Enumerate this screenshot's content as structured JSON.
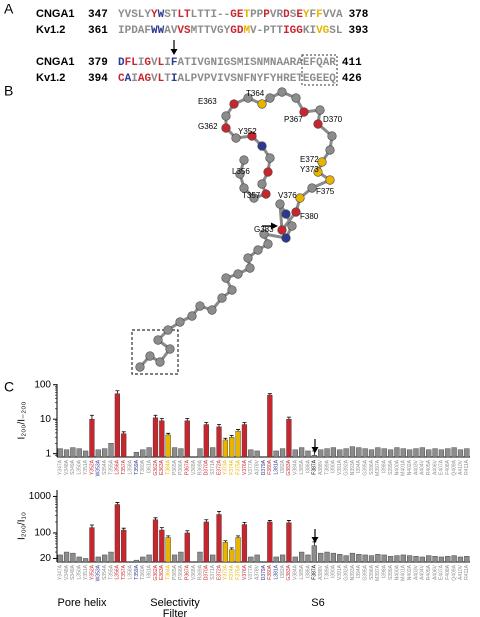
{
  "panel_letters": [
    "A",
    "B",
    "C"
  ],
  "palette": {
    "g": "#8c8c8c",
    "r": "#c8262e",
    "y": "#e8b400",
    "b": "#2b3990",
    "k": "#000000"
  },
  "alignment": {
    "rows": [
      {
        "name": "CNGA1",
        "start": "347",
        "end": "378",
        "segments": [
          {
            "text": "YVSLY",
            "color": "g"
          },
          {
            "text": "Y",
            "color": "r"
          },
          {
            "text": "W",
            "color": "b"
          },
          {
            "text": "ST",
            "color": "g"
          },
          {
            "text": "LT",
            "color": "r"
          },
          {
            "text": "LTTI--",
            "color": "g"
          },
          {
            "text": "G",
            "color": "r"
          },
          {
            "text": "E",
            "color": "r"
          },
          {
            "text": "T",
            "color": "y"
          },
          {
            "text": "PP",
            "color": "g"
          },
          {
            "text": "P",
            "color": "r"
          },
          {
            "text": "VR",
            "color": "g"
          },
          {
            "text": "D",
            "color": "r"
          },
          {
            "text": "S",
            "color": "g"
          },
          {
            "text": "E",
            "color": "r"
          },
          {
            "text": "Y",
            "color": "y"
          },
          {
            "text": "F",
            "color": "g"
          },
          {
            "text": "F",
            "color": "y"
          },
          {
            "text": "VVA",
            "color": "g"
          }
        ]
      },
      {
        "name": "Kv1.2",
        "start": "361",
        "end": "393",
        "segments": [
          {
            "text": "IPDAF",
            "color": "g"
          },
          {
            "text": "WW",
            "color": "b"
          },
          {
            "text": "AV",
            "color": "g"
          },
          {
            "text": "VS",
            "color": "r"
          },
          {
            "text": "MTTVGY",
            "color": "g"
          },
          {
            "text": "GD",
            "color": "r"
          },
          {
            "text": "M",
            "color": "y"
          },
          {
            "text": "V-PTT",
            "color": "g"
          },
          {
            "text": "IGG",
            "color": "r"
          },
          {
            "text": "KI",
            "color": "g"
          },
          {
            "text": "VG",
            "color": "y"
          },
          {
            "text": "SL",
            "color": "g"
          }
        ]
      },
      {
        "name": "CNGA1",
        "start": "379",
        "end": "411",
        "segments": [
          {
            "text": "D",
            "color": "b"
          },
          {
            "text": "FL",
            "color": "r"
          },
          {
            "text": "I",
            "color": "g"
          },
          {
            "text": "G",
            "color": "r"
          },
          {
            "text": "V",
            "color": "g"
          },
          {
            "text": "L",
            "color": "r"
          },
          {
            "text": "I",
            "color": "g"
          },
          {
            "text": "F",
            "color": "b"
          },
          {
            "text": "ATIVGNIGSMISNMNAARAEFQAR",
            "color": "g"
          }
        ]
      },
      {
        "name": "Kv1.2",
        "start": "394",
        "end": "426",
        "segments": [
          {
            "text": "C",
            "color": "r"
          },
          {
            "text": "A",
            "color": "b"
          },
          {
            "text": "I",
            "color": "g"
          },
          {
            "text": "A",
            "color": "r"
          },
          {
            "text": "G",
            "color": "r"
          },
          {
            "text": "V",
            "color": "g"
          },
          {
            "text": "L",
            "color": "r"
          },
          {
            "text": "T",
            "color": "g"
          },
          {
            "text": "I",
            "color": "b"
          },
          {
            "text": "ALPVPVIVSNFNYFYHRETEGEEQ",
            "color": "g"
          }
        ]
      }
    ]
  },
  "structure": {
    "labels": [
      "E363",
      "T364",
      "P367",
      "D370",
      "G362",
      "Y352",
      "E372",
      "Y373",
      "F375",
      "L356",
      "V376",
      "T357",
      "F380",
      "G383"
    ]
  },
  "groups": [
    "Pore helix",
    "Selectivity",
    "Filter",
    "S6"
  ],
  "chart_data": [
    {
      "type": "bar",
      "ylabel": "I₂₀₀/I₋₂₀₀",
      "log_scale": true,
      "ylim": [
        0.8,
        105
      ],
      "yticks": [
        1,
        10,
        100
      ],
      "categories": [
        "Y347A",
        "V348A",
        "S349A",
        "L350A",
        "Y351A",
        "Y352A",
        "W353A",
        "S354A",
        "T355A",
        "L356A",
        "T357A",
        "L358A",
        "T359A",
        "T360A",
        "I361A",
        "G362A",
        "E363A",
        "T364A",
        "P365A",
        "P366A",
        "P367A",
        "V368A",
        "R369A",
        "D370A",
        "S371A",
        "E372A",
        "Y373A",
        "F374A",
        "F375A",
        "V376A",
        "V377A",
        "A378V",
        "D379A",
        "F380A",
        "L381A",
        "I382A",
        "G383A",
        "V384A",
        "L385A",
        "I386A",
        "F387A",
        "A388V",
        "T389A",
        "I390A",
        "V391A",
        "G392A",
        "N393A",
        "I394A",
        "G395A",
        "S396A",
        "M397A",
        "I398A",
        "S399A",
        "N400A",
        "M401A",
        "N402A",
        "A403V",
        "A404V",
        "R405A",
        "A406V",
        "E407A",
        "F408A",
        "Q409A",
        "A410V",
        "R411A"
      ],
      "values": [
        1.4,
        1.3,
        1.5,
        1.4,
        1.2,
        10,
        1.3,
        1.4,
        2.0,
        55,
        3.8,
        null,
        1.1,
        1.3,
        1.5,
        11,
        9,
        3.5,
        1.5,
        1.4,
        9,
        null,
        1.4,
        7,
        1.5,
        6,
        2.5,
        3.0,
        4.5,
        7,
        1.3,
        1.2,
        null,
        50,
        1.2,
        1.4,
        10,
        1.3,
        1.5,
        1.2,
        0.9,
        1.3,
        1.4,
        1.5,
        1.3,
        1.4,
        1.6,
        1.5,
        1.4,
        1.3,
        1.5,
        1.4,
        1.3,
        1.5,
        1.4,
        1.3,
        1.4,
        1.5,
        1.3,
        1.4,
        1.3,
        1.4,
        1.5,
        1.3,
        1.4
      ],
      "errors": [
        null,
        null,
        null,
        null,
        null,
        3,
        null,
        null,
        null,
        12,
        0.5,
        null,
        null,
        null,
        null,
        2,
        1.5,
        0.4,
        null,
        null,
        1.5,
        null,
        null,
        1,
        null,
        1,
        0.3,
        0.4,
        0.5,
        1,
        null,
        null,
        null,
        5,
        null,
        null,
        1.5,
        null,
        null,
        null,
        0.3,
        null,
        null,
        null,
        null,
        null,
        null,
        null,
        null,
        null,
        null,
        null,
        null,
        null,
        null,
        null,
        null,
        null,
        null,
        null,
        null,
        null,
        null,
        null,
        null
      ],
      "bar_colors": [
        "g",
        "g",
        "g",
        "g",
        "g",
        "r",
        "g",
        "g",
        "g",
        "r",
        "r",
        "g",
        "g",
        "g",
        "g",
        "r",
        "r",
        "y",
        "g",
        "g",
        "r",
        "g",
        "g",
        "r",
        "g",
        "r",
        "y",
        "y",
        "y",
        "r",
        "g",
        "g",
        "g",
        "r",
        "g",
        "g",
        "r",
        "g",
        "g",
        "g",
        "g",
        "g",
        "g",
        "g",
        "g",
        "g",
        "g",
        "g",
        "g",
        "g",
        "g",
        "g",
        "g",
        "g",
        "g",
        "g",
        "g",
        "g",
        "g",
        "g",
        "g",
        "g",
        "g",
        "g",
        "g"
      ],
      "label_colors": [
        "g",
        "g",
        "g",
        "g",
        "g",
        "r",
        "b",
        "g",
        "g",
        "r",
        "r",
        "g",
        "b",
        "g",
        "g",
        "r",
        "r",
        "y",
        "g",
        "g",
        "r",
        "g",
        "g",
        "r",
        "g",
        "r",
        "y",
        "y",
        "y",
        "r",
        "g",
        "g",
        "b",
        "r",
        "b",
        "g",
        "r",
        "g",
        "g",
        "g",
        "k",
        "g",
        "g",
        "g",
        "g",
        "g",
        "g",
        "g",
        "g",
        "g",
        "g",
        "g",
        "g",
        "g",
        "g",
        "g",
        "g",
        "g",
        "g",
        "g",
        "g",
        "g",
        "g",
        "g",
        "g"
      ]
    },
    {
      "type": "bar",
      "ylabel": "I₂₀₀/I₁₀",
      "log_scale": true,
      "ylim": [
        16,
        1500
      ],
      "yticks": [
        20,
        100,
        1000
      ],
      "categories": [
        "Y347A",
        "V348A",
        "S349A",
        "L350A",
        "Y351A",
        "Y352A",
        "W353A",
        "S354A",
        "T355A",
        "L356A",
        "T357A",
        "L358A",
        "T359A",
        "T360A",
        "I361A",
        "G362A",
        "E363A",
        "T364A",
        "P365A",
        "P366A",
        "P367A",
        "V368A",
        "R369A",
        "D370A",
        "S371A",
        "E372A",
        "Y373A",
        "F374A",
        "F375A",
        "V376A",
        "V377A",
        "A378V",
        "D379A",
        "F380A",
        "L381A",
        "I382A",
        "G383A",
        "V384A",
        "L385A",
        "I386A",
        "F387A",
        "A388V",
        "T389A",
        "I390A",
        "V391A",
        "G392A",
        "N393A",
        "I394A",
        "G395A",
        "S396A",
        "M397A",
        "I398A",
        "S399A",
        "N400A",
        "M401A",
        "N402A",
        "A403V",
        "A404V",
        "R405A",
        "A406V",
        "E407A",
        "F408A",
        "Q409A",
        "A410V",
        "R411A"
      ],
      "values": [
        25,
        30,
        28,
        22,
        20,
        140,
        22,
        25,
        30,
        600,
        120,
        null,
        18,
        22,
        25,
        230,
        120,
        75,
        25,
        30,
        100,
        null,
        30,
        200,
        25,
        320,
        55,
        35,
        75,
        170,
        22,
        25,
        null,
        200,
        22,
        25,
        190,
        22,
        30,
        25,
        45,
        28,
        30,
        28,
        26,
        24,
        28,
        26,
        25,
        24,
        26,
        25,
        23,
        24,
        25,
        24,
        23,
        22,
        24,
        23,
        22,
        23,
        24,
        22,
        23
      ],
      "errors": [
        null,
        null,
        null,
        null,
        null,
        25,
        null,
        null,
        null,
        80,
        15,
        null,
        null,
        null,
        null,
        30,
        20,
        8,
        null,
        null,
        15,
        null,
        null,
        30,
        null,
        70,
        6,
        4,
        8,
        25,
        null,
        null,
        null,
        20,
        null,
        null,
        30,
        null,
        null,
        null,
        12,
        null,
        null,
        null,
        null,
        null,
        null,
        null,
        null,
        null,
        null,
        null,
        null,
        null,
        null,
        null,
        null,
        null,
        null,
        null,
        null,
        null,
        null,
        null,
        null
      ],
      "bar_colors": [
        "g",
        "g",
        "g",
        "g",
        "g",
        "r",
        "g",
        "g",
        "g",
        "r",
        "r",
        "g",
        "g",
        "g",
        "g",
        "r",
        "r",
        "y",
        "g",
        "g",
        "r",
        "g",
        "g",
        "r",
        "g",
        "r",
        "y",
        "y",
        "y",
        "r",
        "g",
        "g",
        "g",
        "r",
        "g",
        "g",
        "r",
        "g",
        "g",
        "g",
        "g",
        "g",
        "g",
        "g",
        "g",
        "g",
        "g",
        "g",
        "g",
        "g",
        "g",
        "g",
        "g",
        "g",
        "g",
        "g",
        "g",
        "g",
        "g",
        "g",
        "g",
        "g",
        "g",
        "g",
        "g"
      ],
      "label_colors": [
        "g",
        "g",
        "g",
        "g",
        "g",
        "r",
        "b",
        "g",
        "g",
        "r",
        "r",
        "g",
        "b",
        "g",
        "g",
        "r",
        "r",
        "y",
        "g",
        "g",
        "r",
        "g",
        "g",
        "r",
        "g",
        "r",
        "y",
        "y",
        "y",
        "r",
        "g",
        "g",
        "b",
        "r",
        "b",
        "g",
        "r",
        "g",
        "g",
        "g",
        "k",
        "g",
        "g",
        "g",
        "g",
        "g",
        "g",
        "g",
        "g",
        "g",
        "g",
        "g",
        "g",
        "g",
        "g",
        "g",
        "g",
        "g",
        "g",
        "g",
        "g",
        "g",
        "g",
        "g",
        "g"
      ]
    }
  ]
}
